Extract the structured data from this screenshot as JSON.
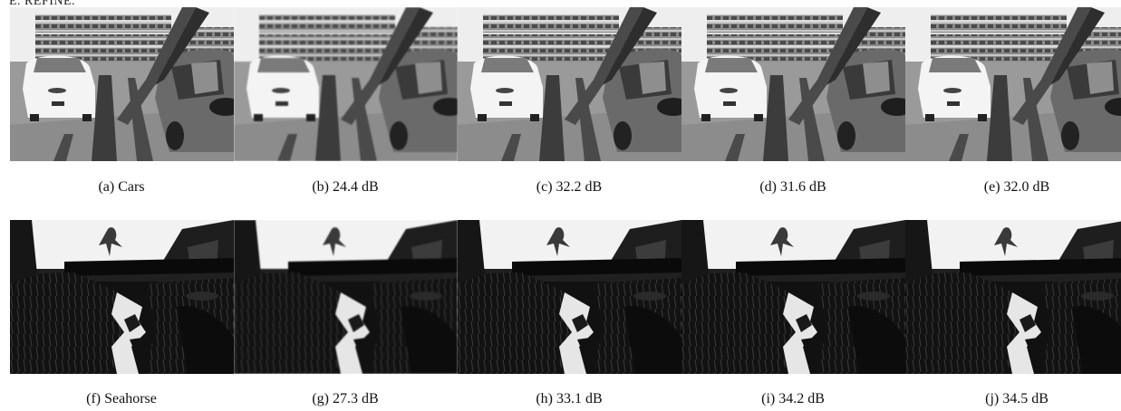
{
  "header": {
    "fragment": "E. REFINE."
  },
  "figure": {
    "rows": [
      {
        "scene": "Cars",
        "panels": [
          {
            "caption": "(a) Cars"
          },
          {
            "caption": "(b) 24.4 dB"
          },
          {
            "caption": "(c) 32.2 dB"
          },
          {
            "caption": "(d) 31.6 dB"
          },
          {
            "caption": "(e) 32.0 dB"
          }
        ]
      },
      {
        "scene": "Seahorse",
        "panels": [
          {
            "caption": "(f) Seahorse"
          },
          {
            "caption": "(g) 27.3 dB"
          },
          {
            "caption": "(h) 33.1 dB"
          },
          {
            "caption": "(i) 34.2 dB"
          },
          {
            "caption": "(j) 34.5 dB"
          }
        ]
      }
    ]
  }
}
